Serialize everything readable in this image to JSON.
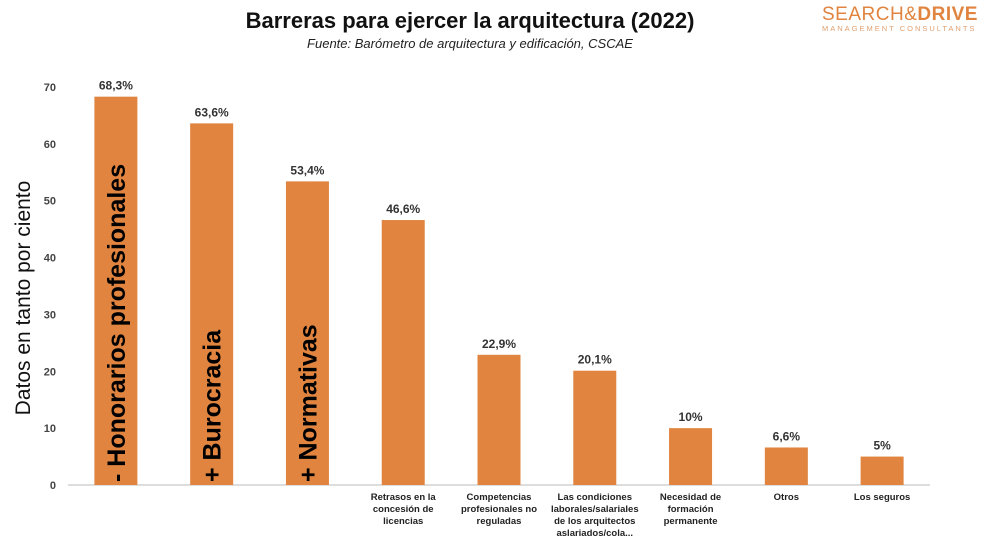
{
  "logo": {
    "text_left": "SEARCH",
    "text_amp": "&",
    "text_right": "DRIVE",
    "tagline": "MANAGEMENT CONSULTANTS"
  },
  "colors": {
    "bar": "#e0843f",
    "axis": "#bbbbbb"
  },
  "chart_data": {
    "type": "bar",
    "title": "Barreras para ejercer la arquitectura (2022)",
    "subtitle": "Fuente: Barómetro de arquitectura y edificación, CSCAE",
    "ylabel": "Datos en tanto por ciento",
    "xlabel": "",
    "ylim": [
      0,
      70
    ],
    "yticks": [
      0,
      10,
      20,
      30,
      40,
      50,
      60,
      70
    ],
    "grid": false,
    "categories": [
      "",
      "",
      "",
      "Retrasos en la concesión de licencias",
      "Competencias profesionales no reguladas",
      "Las condiciones laborales/salariales de los arquitectos aslariados/cola...",
      "Necesidad de formación permanente",
      "Otros",
      "Los seguros"
    ],
    "category_lines": [
      [],
      [],
      [],
      [
        "Retrasos en la",
        "concesión de",
        "licencias"
      ],
      [
        "Competencias",
        "profesionales no",
        "reguladas"
      ],
      [
        "Las condiciones",
        "laborales/salariales",
        "de los arquitectos",
        "aslariados/cola..."
      ],
      [
        "Necesidad de",
        "formación",
        "permanente"
      ],
      [
        "Otros"
      ],
      [
        "Los seguros"
      ]
    ],
    "values": [
      68.3,
      63.6,
      53.4,
      46.6,
      22.9,
      20.1,
      10,
      6.6,
      5
    ],
    "data_labels": [
      "68,3%",
      "63,6%",
      "53,4%",
      "46,6%",
      "22,9%",
      "20,1%",
      "10%",
      "6,6%",
      "5%"
    ],
    "annotations": [
      "- Honorarios profesionales",
      "+ Burocracia",
      "+ Normativas"
    ]
  }
}
